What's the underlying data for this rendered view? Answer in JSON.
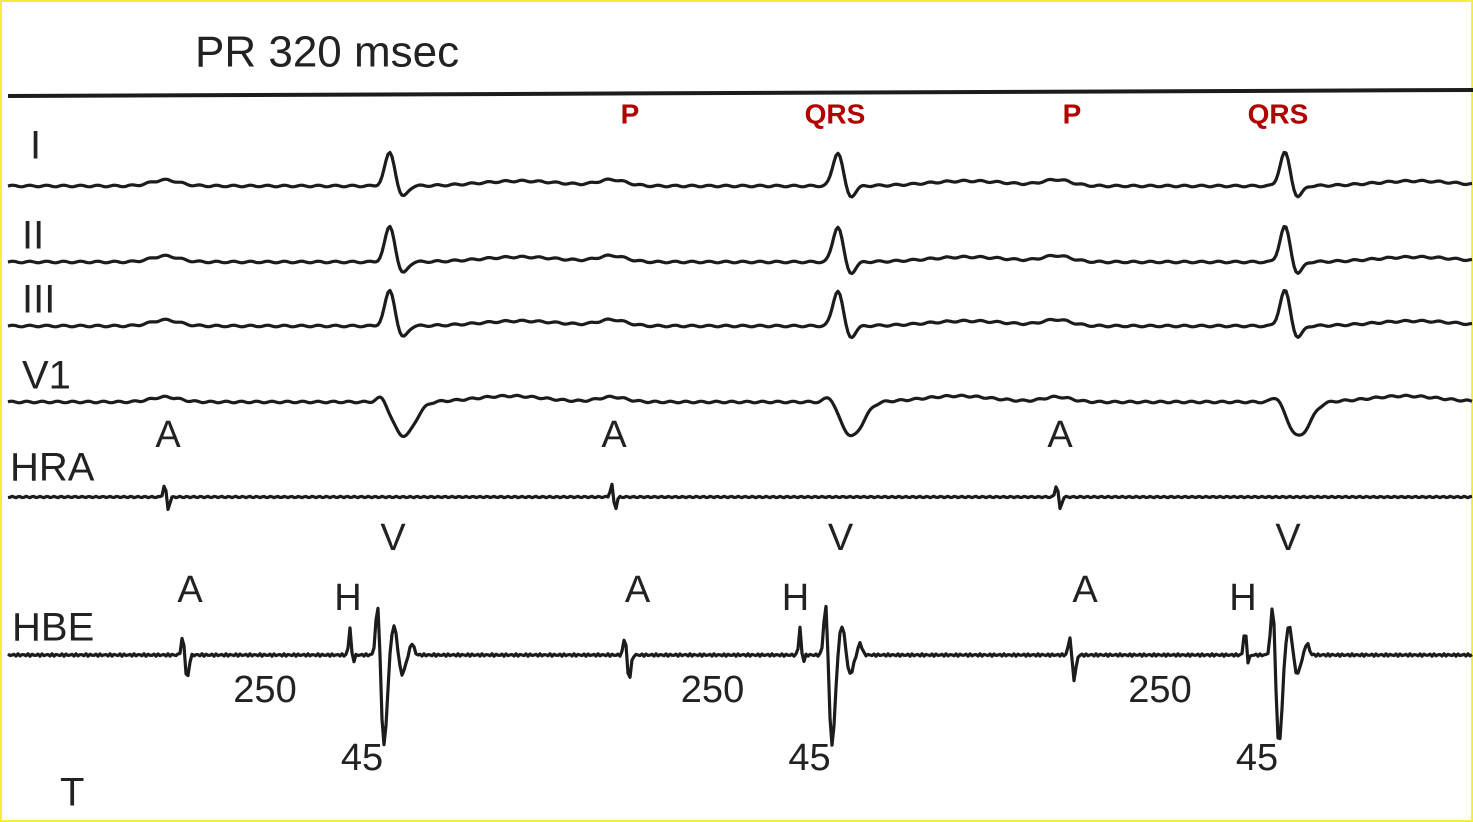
{
  "title": "PR 320 msec",
  "leads": [
    "I",
    "II",
    "III",
    "V1",
    "HRA",
    "HBE",
    "T"
  ],
  "annotations": [
    "P",
    "QRS",
    "P",
    "QRS"
  ],
  "hra_beats": [
    "A",
    "A",
    "A"
  ],
  "hbe_beats": [
    {
      "a": "A",
      "h": "H",
      "v": "V",
      "ah": 250,
      "hv": 45
    },
    {
      "a": "A",
      "h": "H",
      "v": "V",
      "ah": 250,
      "hv": 45
    },
    {
      "a": "A",
      "h": "H",
      "v": "V",
      "ah": 250,
      "hv": 45
    }
  ]
}
